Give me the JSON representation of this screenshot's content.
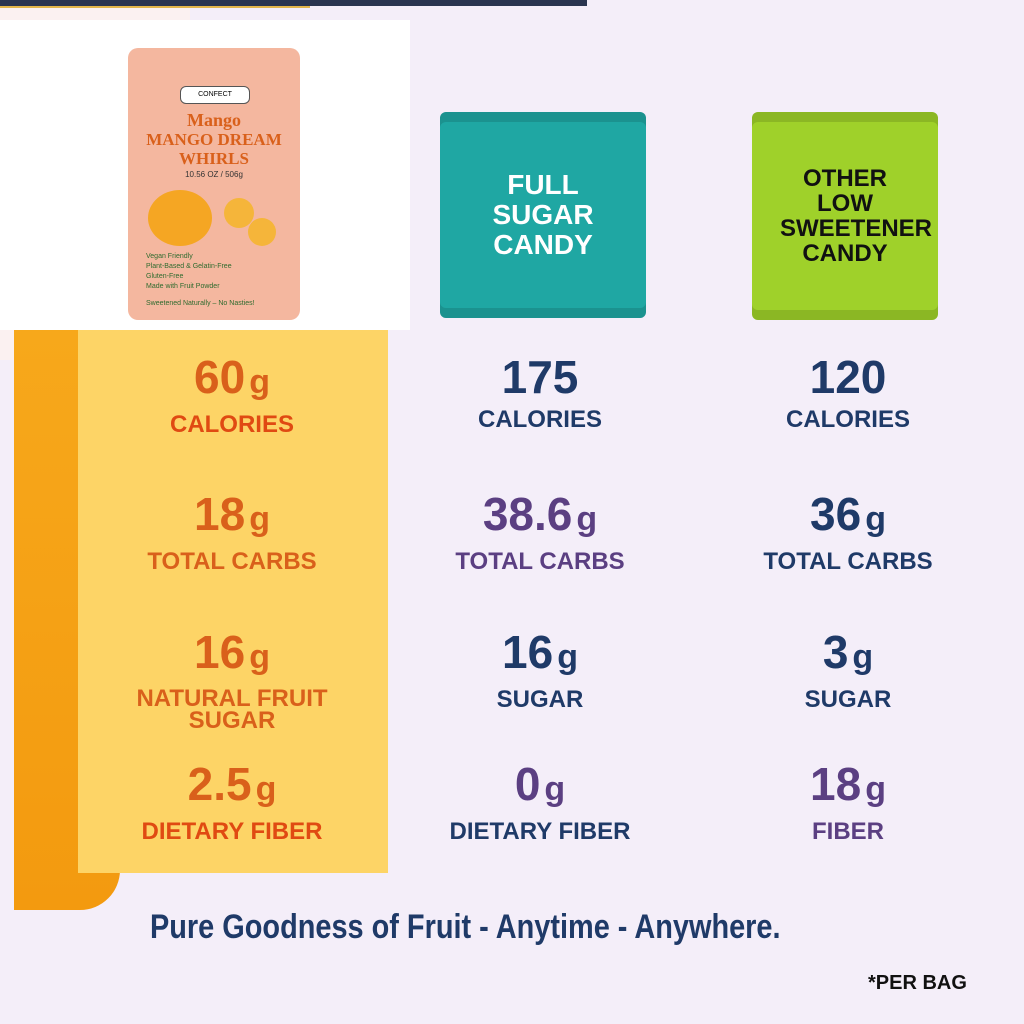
{
  "product": {
    "brand": "CONFECT",
    "flavor": "Mango",
    "name": "MANGO DREAM WHIRLS",
    "weight": "10.56 OZ / 506g",
    "features": [
      "Vegan Friendly",
      "Plant-Based & Gelatin-Free",
      "Gluten-Free",
      "Made with Fruit Powder"
    ],
    "tagline": "Sweetened Naturally – No Nasties!"
  },
  "competitors": [
    {
      "name": "FULL SUGAR CANDY",
      "color": "#1fa7a3"
    },
    {
      "name": "OTHER LOW SWEETENER CANDY",
      "color": "#9fd12a"
    }
  ],
  "rows": [
    [
      {
        "value": "60",
        "unit": "g",
        "label": "CALORIES",
        "color": "#d9601b",
        "label_color": "#e04a12"
      },
      {
        "value": "175",
        "label": "CALORIES",
        "color": "#1f3a68",
        "label_color": "#1f3a68"
      },
      {
        "value": "120",
        "label": "CALORIES",
        "color": "#1f3a68",
        "label_color": "#1f3a68"
      }
    ],
    [
      {
        "value": "18",
        "unit": "g",
        "label": "TOTAL CARBS",
        "color": "#d9601b",
        "label_color": "#d9601b"
      },
      {
        "value": "38.6",
        "unit": "g",
        "label": "TOTAL CARBS",
        "color": "#5b3f82",
        "label_color": "#5b3f82",
        "highlight": "#fbf1f1"
      },
      {
        "value": "36",
        "unit": "g",
        "label": "TOTAL CARBS",
        "color": "#1f3a68",
        "label_color": "#1f3a68"
      }
    ],
    [
      {
        "value": "16",
        "unit": "g",
        "label": "NATURAL  FRUIT SUGAR",
        "color": "#d9601b",
        "label_color": "#d9601b"
      },
      {
        "value": "16",
        "unit": "g",
        "label": "SUGAR",
        "color": "#1f3a68",
        "label_color": "#1f3a68"
      },
      {
        "value": "3",
        "unit": "g",
        "label": "SUGAR",
        "color": "#1f3a68",
        "label_color": "#1f3a68"
      }
    ],
    [
      {
        "value": "2.5",
        "unit": "g",
        "label": "DIETARY FIBER",
        "color": "#d9601b",
        "label_color": "#e04a12"
      },
      {
        "value": "0",
        "unit": "g",
        "label": "DIETARY FIBER",
        "color": "#5b3f82",
        "label_color": "#1f3a68",
        "highlight": "#fbf1f1"
      },
      {
        "value": "18",
        "unit": "g",
        "label": "FIBER",
        "color": "#5b3f82",
        "label_color": "#5b3f82",
        "highlight": "#fbf1f1"
      }
    ]
  ],
  "footer": {
    "slogan": "Pure Goodness of Fruit - Anytime - Anywhere.",
    "note": "*PER BAG"
  }
}
